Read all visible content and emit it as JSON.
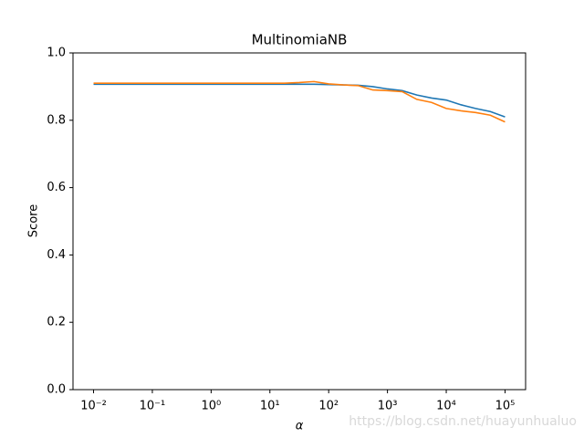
{
  "chart_data": {
    "type": "line",
    "title": "MultinomiaNB",
    "xlabel": "α",
    "ylabel": "Score",
    "xscale": "log",
    "x": [
      0.01,
      0.0178,
      0.0316,
      0.0562,
      0.1,
      0.178,
      0.316,
      0.562,
      1,
      1.78,
      3.16,
      5.62,
      10,
      17.8,
      31.6,
      56.2,
      100,
      178,
      316,
      562,
      1000,
      1780,
      3160,
      5620,
      10000,
      17800,
      31600,
      56200,
      100000
    ],
    "series": [
      {
        "color": "#1f77b4",
        "values": [
          0.907,
          0.907,
          0.907,
          0.907,
          0.907,
          0.907,
          0.907,
          0.907,
          0.907,
          0.907,
          0.907,
          0.907,
          0.907,
          0.907,
          0.907,
          0.907,
          0.906,
          0.905,
          0.904,
          0.9,
          0.893,
          0.888,
          0.875,
          0.866,
          0.86,
          0.846,
          0.835,
          0.826,
          0.81
        ]
      },
      {
        "color": "#ff7f0e",
        "values": [
          0.91,
          0.91,
          0.91,
          0.91,
          0.91,
          0.91,
          0.91,
          0.91,
          0.91,
          0.91,
          0.91,
          0.91,
          0.91,
          0.91,
          0.912,
          0.915,
          0.908,
          0.905,
          0.903,
          0.89,
          0.888,
          0.885,
          0.862,
          0.853,
          0.835,
          0.828,
          0.823,
          0.815,
          0.795
        ]
      }
    ],
    "xlim": [
      0.00447,
      223872
    ],
    "xticks": [
      {
        "value": 0.01,
        "label": "10⁻²"
      },
      {
        "value": 0.1,
        "label": "10⁻¹"
      },
      {
        "value": 1,
        "label": "10⁰"
      },
      {
        "value": 10,
        "label": "10¹"
      },
      {
        "value": 100,
        "label": "10²"
      },
      {
        "value": 1000,
        "label": "10³"
      },
      {
        "value": 10000,
        "label": "10⁴"
      },
      {
        "value": 100000,
        "label": "10⁵"
      }
    ],
    "ylim": [
      0,
      1
    ],
    "yticks": [
      {
        "value": 0,
        "label": "0.0"
      },
      0.2,
      0.4,
      0.6,
      0.8,
      {
        "value": 1,
        "label": "1.0"
      }
    ],
    "grid": false,
    "watermark": "https://blog.csdn.net/huayunhualuo"
  }
}
